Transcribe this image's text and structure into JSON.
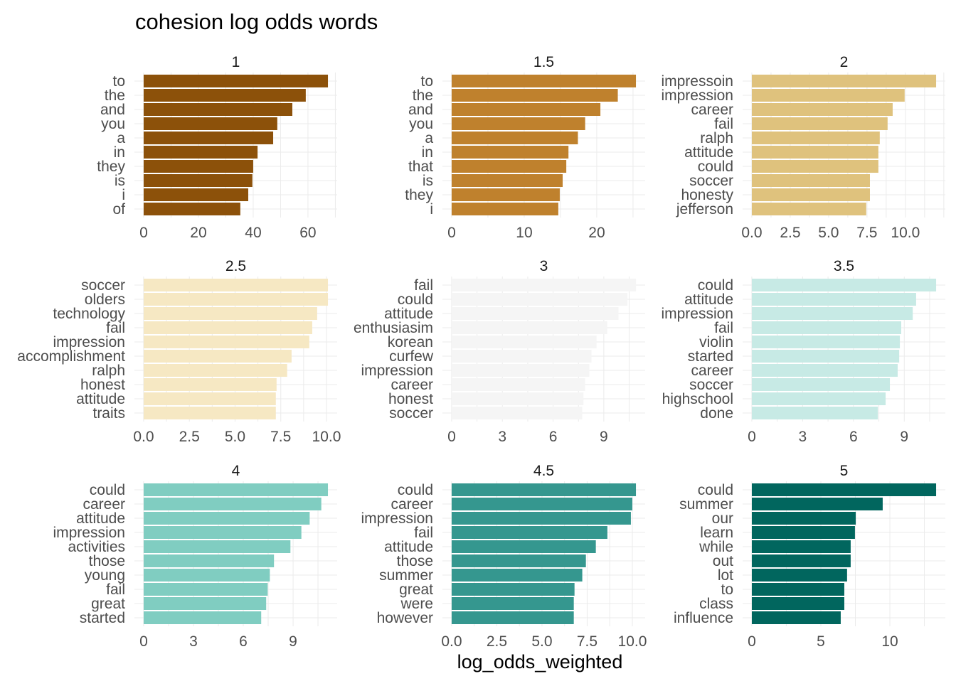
{
  "chart_data": {
    "type": "bar",
    "orientation": "horizontal",
    "title": "cohesion log odds words",
    "xlabel": "log_odds_weighted",
    "ylabel": "",
    "grid": true,
    "facets": [
      {
        "label": "1",
        "color": "#8c510a",
        "ticks": [
          "0",
          "20",
          "40",
          "60"
        ],
        "tick_values": [
          0,
          20,
          40,
          60
        ],
        "categories": [
          "to",
          "the",
          "and",
          "you",
          "a",
          "in",
          "they",
          "is",
          "i",
          "of"
        ],
        "values": [
          67.3,
          59.2,
          54.3,
          48.8,
          47.3,
          41.6,
          40.0,
          39.7,
          38.2,
          35.3
        ]
      },
      {
        "label": "1.5",
        "color": "#bf812d",
        "ticks": [
          "0",
          "10",
          "20"
        ],
        "tick_values": [
          0,
          10,
          20
        ],
        "categories": [
          "to",
          "the",
          "and",
          "you",
          "a",
          "in",
          "that",
          "is",
          "they",
          "i"
        ],
        "values": [
          25.4,
          22.9,
          20.5,
          18.4,
          17.4,
          16.1,
          15.8,
          15.3,
          14.9,
          14.7
        ]
      },
      {
        "label": "2",
        "color": "#dfc27d",
        "ticks": [
          "0.0",
          "2.5",
          "5.0",
          "7.5",
          "10.0"
        ],
        "tick_values": [
          0,
          2.5,
          5,
          7.5,
          10
        ],
        "categories": [
          "impressoin",
          "impression",
          "career",
          "fail",
          "ralph",
          "attitude",
          "could",
          "soccer",
          "honesty",
          "jefferson"
        ],
        "values": [
          12.0,
          9.95,
          9.17,
          8.84,
          8.33,
          8.24,
          8.24,
          7.69,
          7.69,
          7.45
        ]
      },
      {
        "label": "2.5",
        "color": "#f6e8c3",
        "ticks": [
          "0.0",
          "2.5",
          "5.0",
          "7.5",
          "10.0"
        ],
        "tick_values": [
          0,
          2.5,
          5,
          7.5,
          10
        ],
        "categories": [
          "soccer",
          "olders",
          "technology",
          "fail",
          "impression",
          "accomplishment",
          "ralph",
          "honest",
          "attitude",
          "traits"
        ],
        "values": [
          10.08,
          10.08,
          9.49,
          9.22,
          9.06,
          8.09,
          7.85,
          7.27,
          7.23,
          7.23
        ]
      },
      {
        "label": "3",
        "color": "#f5f5f5",
        "ticks": [
          "0",
          "3",
          "6",
          "9"
        ],
        "tick_values": [
          0,
          3,
          6,
          9
        ],
        "categories": [
          "fail",
          "could",
          "attitude",
          "enthusiasim",
          "korean",
          "curfew",
          "impression",
          "career",
          "honest",
          "soccer"
        ],
        "values": [
          10.9,
          10.4,
          9.87,
          9.2,
          8.57,
          8.27,
          8.14,
          7.89,
          7.8,
          7.72
        ]
      },
      {
        "label": "3.5",
        "color": "#c7eae5",
        "ticks": [
          "0",
          "3",
          "6",
          "9"
        ],
        "tick_values": [
          0,
          3,
          6,
          9
        ],
        "categories": [
          "could",
          "attitude",
          "impression",
          "fail",
          "violin",
          "started",
          "career",
          "soccer",
          "highschool",
          "done"
        ],
        "values": [
          10.88,
          9.7,
          9.5,
          8.82,
          8.74,
          8.7,
          8.61,
          8.15,
          7.9,
          7.44
        ]
      },
      {
        "label": "4",
        "color": "#80cdc1",
        "ticks": [
          "0",
          "3",
          "6",
          "9"
        ],
        "tick_values": [
          0,
          3,
          6,
          9
        ],
        "categories": [
          "could",
          "career",
          "attitude",
          "impression",
          "activities",
          "those",
          "young",
          "fail",
          "great",
          "started"
        ],
        "values": [
          11.1,
          10.7,
          10.0,
          9.5,
          8.84,
          7.85,
          7.6,
          7.47,
          7.38,
          7.08
        ]
      },
      {
        "label": "4.5",
        "color": "#35978f",
        "ticks": [
          "0.0",
          "2.5",
          "5.0",
          "7.5",
          "10.0"
        ],
        "tick_values": [
          0,
          2.5,
          5,
          7.5,
          10
        ],
        "categories": [
          "could",
          "career",
          "impression",
          "fail",
          "attitude",
          "those",
          "summer",
          "great",
          "were",
          "however"
        ],
        "values": [
          10.2,
          10.0,
          9.92,
          8.62,
          7.98,
          7.43,
          7.23,
          6.8,
          6.76,
          6.76
        ]
      },
      {
        "label": "5",
        "color": "#01665e",
        "ticks": [
          "0",
          "5",
          "10"
        ],
        "tick_values": [
          0,
          5,
          10
        ],
        "categories": [
          "could",
          "summer",
          "our",
          "learn",
          "while",
          "out",
          "lot",
          "to",
          "class",
          "influence"
        ],
        "values": [
          13.35,
          9.48,
          7.53,
          7.47,
          7.16,
          7.16,
          6.9,
          6.7,
          6.7,
          6.44
        ]
      }
    ]
  }
}
